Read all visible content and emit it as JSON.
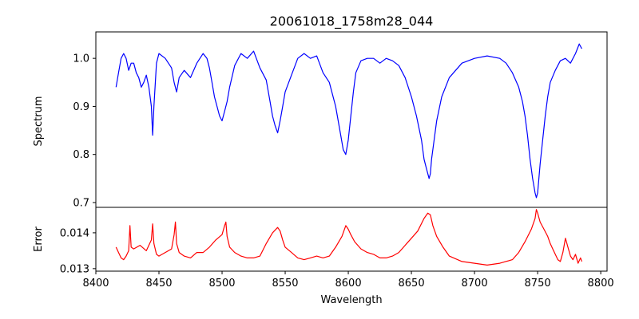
{
  "chart_data": [
    {
      "type": "line",
      "title": "20061018_1758m28_044",
      "xlabel": "",
      "ylabel": "Spectrum",
      "xlim": [
        8400,
        8805
      ],
      "ylim": [
        0.69,
        1.055
      ],
      "yticks": [
        0.7,
        0.8,
        0.9,
        1.0
      ],
      "ytick_labels": [
        "0.7",
        "0.8",
        "0.9",
        "1.0"
      ],
      "grid": false,
      "color": "#0000ff",
      "series": [
        {
          "x": [
            8416,
            8418,
            8420,
            8422,
            8424,
            8426,
            8428,
            8430,
            8432,
            8434,
            8436,
            8438,
            8440,
            8442,
            8444,
            8445,
            8446,
            8448,
            8450,
            8455,
            8460,
            8462,
            8464,
            8466,
            8470,
            8475,
            8480,
            8485,
            8488,
            8490,
            8492,
            8494,
            8496,
            8498,
            8500,
            8502,
            8504,
            8506,
            8510,
            8515,
            8520,
            8525,
            8530,
            8535,
            8538,
            8540,
            8542,
            8544,
            8546,
            8548,
            8550,
            8555,
            8560,
            8565,
            8570,
            8575,
            8580,
            8585,
            8590,
            8594,
            8596,
            8598,
            8600,
            8602,
            8604,
            8606,
            8610,
            8615,
            8620,
            8625,
            8630,
            8635,
            8640,
            8645,
            8650,
            8654,
            8658,
            8660,
            8662,
            8663,
            8664,
            8665,
            8666,
            8668,
            8670,
            8674,
            8680,
            8690,
            8700,
            8710,
            8720,
            8725,
            8730,
            8735,
            8738,
            8740,
            8742,
            8744,
            8746,
            8748,
            8749,
            8750,
            8752,
            8754,
            8756,
            8758,
            8760,
            8764,
            8768,
            8772,
            8776,
            8780,
            8783,
            8785
          ],
          "y": [
            0.94,
            0.97,
            1.0,
            1.01,
            1.0,
            0.975,
            0.99,
            0.99,
            0.97,
            0.96,
            0.94,
            0.95,
            0.965,
            0.94,
            0.9,
            0.84,
            0.9,
            0.99,
            1.01,
            1.0,
            0.98,
            0.95,
            0.93,
            0.96,
            0.975,
            0.96,
            0.99,
            1.01,
            1.0,
            0.98,
            0.95,
            0.92,
            0.9,
            0.88,
            0.87,
            0.89,
            0.91,
            0.94,
            0.985,
            1.01,
            1.0,
            1.015,
            0.98,
            0.955,
            0.91,
            0.88,
            0.86,
            0.845,
            0.87,
            0.9,
            0.93,
            0.965,
            1.0,
            1.01,
            1.0,
            1.005,
            0.97,
            0.95,
            0.9,
            0.84,
            0.81,
            0.8,
            0.83,
            0.88,
            0.93,
            0.97,
            0.995,
            1.0,
            1.0,
            0.99,
            1.0,
            0.995,
            0.985,
            0.96,
            0.92,
            0.88,
            0.83,
            0.79,
            0.77,
            0.76,
            0.75,
            0.76,
            0.79,
            0.83,
            0.87,
            0.92,
            0.96,
            0.99,
            1.0,
            1.005,
            1.0,
            0.99,
            0.97,
            0.94,
            0.91,
            0.88,
            0.84,
            0.79,
            0.75,
            0.72,
            0.71,
            0.72,
            0.78,
            0.83,
            0.88,
            0.92,
            0.95,
            0.975,
            0.995,
            1.0,
            0.99,
            1.01,
            1.03,
            1.02
          ]
        }
      ]
    },
    {
      "type": "line",
      "title": "",
      "xlabel": "Wavelength",
      "ylabel": "Error",
      "xlim": [
        8400,
        8805
      ],
      "ylim": [
        0.01293,
        0.01471
      ],
      "xticks": [
        8400,
        8450,
        8500,
        8550,
        8600,
        8650,
        8700,
        8750,
        8800
      ],
      "xtick_labels": [
        "8400",
        "8450",
        "8500",
        "8550",
        "8600",
        "8650",
        "8700",
        "8750",
        "8800"
      ],
      "yticks": [
        0.013,
        0.014
      ],
      "ytick_labels": [
        "0.013",
        "0.014"
      ],
      "grid": false,
      "color": "#ff0000",
      "series": [
        {
          "x": [
            8416,
            8418,
            8420,
            8422,
            8424,
            8426,
            8427,
            8428,
            8430,
            8435,
            8440,
            8444,
            8445,
            8446,
            8448,
            8450,
            8455,
            8460,
            8462,
            8463,
            8464,
            8466,
            8470,
            8475,
            8480,
            8485,
            8490,
            8495,
            8500,
            8502,
            8503,
            8504,
            8506,
            8510,
            8515,
            8520,
            8525,
            8530,
            8535,
            8540,
            8544,
            8546,
            8548,
            8550,
            8555,
            8560,
            8565,
            8570,
            8575,
            8580,
            8585,
            8590,
            8595,
            8598,
            8600,
            8602,
            8605,
            8610,
            8615,
            8620,
            8625,
            8630,
            8635,
            8640,
            8645,
            8650,
            8655,
            8660,
            8663,
            8665,
            8667,
            8670,
            8675,
            8680,
            8690,
            8700,
            8710,
            8720,
            8730,
            8735,
            8740,
            8745,
            8748,
            8749,
            8750,
            8752,
            8755,
            8758,
            8760,
            8762,
            8764,
            8766,
            8768,
            8770,
            8772,
            8774,
            8776,
            8778,
            8780,
            8782,
            8784,
            8785
          ],
          "y": [
            0.0136,
            0.01345,
            0.0133,
            0.01325,
            0.01335,
            0.0135,
            0.0142,
            0.0136,
            0.01355,
            0.01365,
            0.0135,
            0.0138,
            0.01425,
            0.0137,
            0.0134,
            0.01335,
            0.01345,
            0.01355,
            0.01395,
            0.0143,
            0.0137,
            0.01345,
            0.01335,
            0.0133,
            0.01345,
            0.01345,
            0.0136,
            0.0138,
            0.01395,
            0.0142,
            0.0143,
            0.0139,
            0.0136,
            0.01345,
            0.01335,
            0.0133,
            0.0133,
            0.01335,
            0.0137,
            0.014,
            0.01415,
            0.01405,
            0.0138,
            0.0136,
            0.01345,
            0.0133,
            0.01325,
            0.0133,
            0.01335,
            0.0133,
            0.01335,
            0.0136,
            0.0139,
            0.0142,
            0.0141,
            0.01395,
            0.01375,
            0.01355,
            0.01345,
            0.0134,
            0.0133,
            0.0133,
            0.01335,
            0.01345,
            0.01365,
            0.01385,
            0.01405,
            0.0144,
            0.01455,
            0.0145,
            0.0142,
            0.0139,
            0.0136,
            0.01335,
            0.0132,
            0.01315,
            0.0131,
            0.01315,
            0.01325,
            0.01345,
            0.01375,
            0.0141,
            0.0144,
            0.01465,
            0.01455,
            0.0143,
            0.0141,
            0.0139,
            0.0137,
            0.01355,
            0.0134,
            0.01325,
            0.0132,
            0.01345,
            0.01385,
            0.0136,
            0.01335,
            0.01325,
            0.0134,
            0.01315,
            0.0133,
            0.0132
          ]
        }
      ]
    }
  ]
}
